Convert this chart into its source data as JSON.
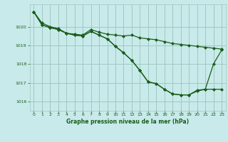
{
  "background_color": "#c8eaea",
  "grid_color": "#a0c8c0",
  "line_color": "#1a5c1a",
  "marker_color": "#1a5c1a",
  "title": "Graphe pression niveau de la mer (hPa)",
  "xlim": [
    -0.5,
    23.5
  ],
  "ylim": [
    1015.5,
    1021.2
  ],
  "yticks": [
    1016,
    1017,
    1018,
    1019,
    1020
  ],
  "xticks": [
    0,
    1,
    2,
    3,
    4,
    5,
    6,
    7,
    8,
    9,
    10,
    11,
    12,
    13,
    14,
    15,
    16,
    17,
    18,
    19,
    20,
    21,
    22,
    23
  ],
  "series": [
    [
      1020.8,
      1020.2,
      1020.0,
      1019.9,
      1019.65,
      1019.6,
      1019.55,
      1019.85,
      1019.7,
      1019.6,
      1019.55,
      1019.5,
      1019.55,
      1019.4,
      1019.35,
      1019.3,
      1019.2,
      1019.1,
      1019.05,
      1019.0,
      1018.95,
      1018.9,
      1018.85,
      1018.8
    ],
    [
      1020.8,
      1020.1,
      1019.95,
      1019.85,
      1019.65,
      1019.55,
      1019.5,
      1019.75,
      1019.55,
      1019.35,
      1018.95,
      1018.6,
      1018.2,
      1017.65,
      1017.05,
      1016.95,
      1016.65,
      1016.4,
      1016.35,
      1016.35,
      1016.6,
      1016.65,
      1016.65,
      1016.65
    ],
    [
      1020.8,
      1020.1,
      1019.95,
      1019.85,
      1019.65,
      1019.55,
      1019.5,
      1019.75,
      1019.55,
      1019.35,
      1018.95,
      1018.6,
      1018.2,
      1017.65,
      1017.05,
      1016.95,
      1016.65,
      1016.4,
      1016.35,
      1016.35,
      1016.55,
      1016.65,
      1018.0,
      1018.75
    ],
    [
      1020.8,
      1020.1,
      1019.95,
      1019.85,
      1019.65,
      1019.55,
      1019.5,
      1019.75,
      1019.55,
      1019.35,
      1018.95,
      1018.6,
      1018.2,
      1017.65,
      1017.05,
      1016.95,
      1016.65,
      1016.4,
      1016.35,
      1016.35,
      1016.55,
      1016.65,
      1018.0,
      1018.75
    ]
  ]
}
